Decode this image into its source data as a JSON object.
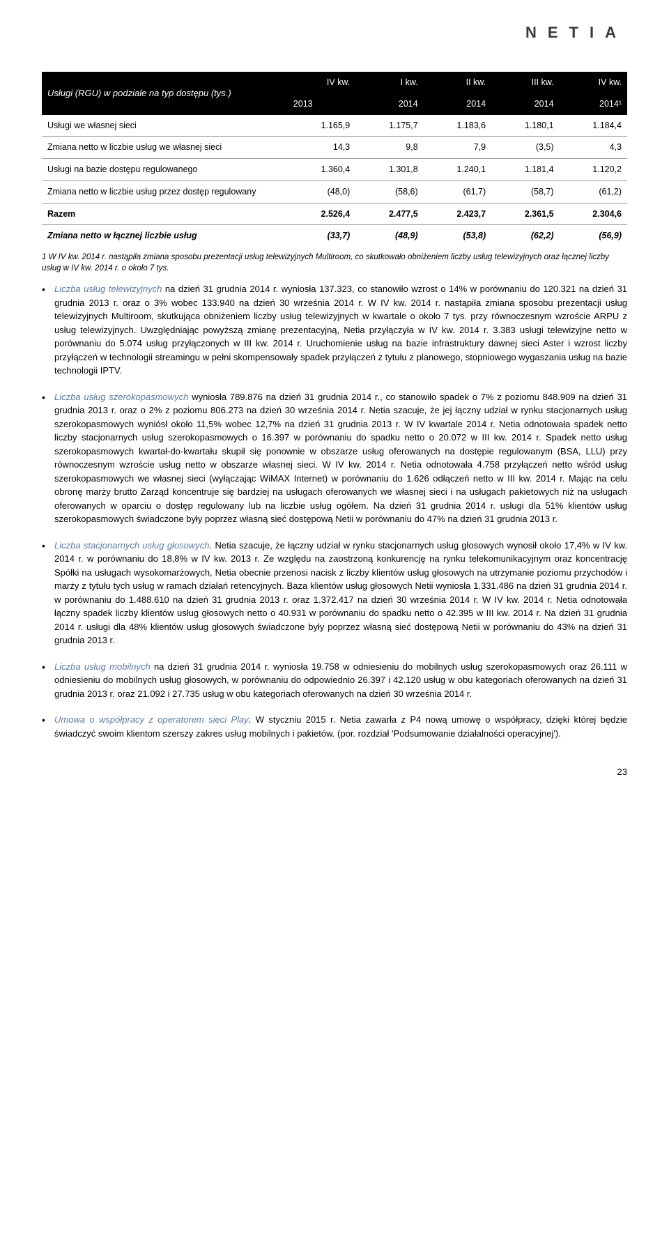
{
  "brand": "NETIA",
  "table": {
    "header_label": "Usługi (RGU) w podziale na typ dostępu (tys.)",
    "cols": [
      {
        "l1": "IV kw.",
        "l2": "2013"
      },
      {
        "l1": "I kw.",
        "l2": "2014"
      },
      {
        "l1": "II kw.",
        "l2": "2014"
      },
      {
        "l1": "III kw.",
        "l2": "2014"
      },
      {
        "l1": "IV kw.",
        "l2": "2014¹"
      }
    ],
    "rows": [
      {
        "label": "Usługi we własnej sieci",
        "v": [
          "1.165,9",
          "1.175,7",
          "1.183,6",
          "1.180,1",
          "1.184,4"
        ]
      },
      {
        "label": "Zmiana netto w liczbie usług we własnej sieci",
        "v": [
          "14,3",
          "9,8",
          "7,9",
          "(3,5)",
          "4,3"
        ]
      },
      {
        "label": "Usługi na bazie dostępu regulowanego",
        "v": [
          "1.360,4",
          "1.301,8",
          "1.240,1",
          "1.181,4",
          "1.120,2"
        ]
      },
      {
        "label": "Zmiana netto w liczbie usług przez dostęp regulowany",
        "v": [
          "(48,0)",
          "(58,6)",
          "(61,7)",
          "(58,7)",
          "(61,2)"
        ]
      }
    ],
    "razem": {
      "label": "Razem",
      "v": [
        "2.526,4",
        "2.477,5",
        "2.423,7",
        "2.361,5",
        "2.304,6"
      ]
    },
    "zmiana": {
      "label": "Zmiana netto w łącznej liczbie usług",
      "v": [
        "(33,7)",
        "(48,9)",
        "(53,8)",
        "(62,2)",
        "(56,9)"
      ]
    }
  },
  "footnote": "1 W IV kw. 2014 r. nastąpiła zmiana sposobu prezentacji usług telewizyjnych Multiroom, co skutkowało obniżeniem liczby usług telewizyjnych oraz łącznej liczby usług w IV kw. 2014 r. o około 7 tys.",
  "bullets": [
    {
      "lead": "Liczba usług telewizyjnych",
      "rest": " na dzień 31 grudnia 2014 r. wyniosła 137.323, co stanowiło wzrost o 14% w porównaniu do 120.321 na dzień 31 grudnia 2013 r. oraz o 3% wobec 133.940 na dzień 30 września 2014 r. W IV kw. 2014 r. nastąpiła zmiana sposobu prezentacji usług telewizyjnych Multiroom, skutkująca obniżeniem liczby usług telewizyjnych w kwartale o około 7 tys. przy równoczesnym wzroście ARPU z usług telewizyjnych. Uwzględniając powyższą zmianę prezentacyjną, Netia przyłączyła w IV kw. 2014 r. 3.383 usługi telewizyjne netto w porównaniu do 5.074 usług przyłączonych w III kw. 2014 r. Uruchomienie usług na bazie infrastruktury dawnej sieci Aster i wzrost liczby przyłączeń w technologii streamingu w pełni skompensowały spadek przyłączeń z tytułu z planowego, stopniowego wygaszania usług na bazie technologii IPTV."
    },
    {
      "lead": "Liczba usług szerokopasmowych",
      "rest": " wyniosła 789.876 na dzień 31 grudnia 2014 r., co stanowiło spadek o 7% z poziomu 848.909 na dzień 31 grudnia 2013 r. oraz o 2% z poziomu 806.273 na dzień 30 września 2014 r. Netia szacuje, że jej łączny udział w rynku stacjonarnych usług szerokopasmowych wyniósł około 11,5% wobec 12,7% na dzień 31 grudnia 2013 r. W IV kwartale 2014 r. Netia odnotowała spadek netto liczby stacjonarnych usług szerokopasmowych o 16.397 w porównaniu do spadku netto o 20.072 w III kw. 2014 r. Spadek netto usług szerokopasmowych kwartał-do-kwartału skupił się ponownie w obszarze usług oferowanych na dostępie regulowanym (BSA, LLU) przy równoczesnym wzroście usług netto w obszarze własnej sieci. W IV kw. 2014 r. Netia odnotowała 4.758 przyłączeń netto wśród usług szerokopasmowych we własnej sieci (wyłączając WiMAX Internet) w porównaniu do 1.626 odłączeń netto w III kw. 2014 r. Mając na celu obronę marży brutto Zarząd koncentruje się bardziej na usługach oferowanych we własnej sieci i na usługach pakietowych niż na usługach oferowanych w oparciu o dostęp regulowany lub na liczbie usług ogółem. Na dzień 31 grudnia 2014 r. usługi dla 51% klientów usług szerokopasmowych świadczone były poprzez własną sieć dostępową Netii w porównaniu do 47% na dzień 31 grudnia 2013 r."
    },
    {
      "lead": "Liczba stacjonarnych usług głosowych",
      "rest": ". Netia szacuje, że łączny udział w rynku stacjonarnych usług głosowych wynosił około 17,4% w IV kw. 2014 r. w porównaniu do 18,8% w IV kw. 2013 r. Ze względu na zaostrzoną konkurencję na rynku telekomunikacyjnym oraz koncentrację Spółki na usługach wysokomarżowych, Netia obecnie przenosi nacisk z liczby klientów usług głosowych na utrzymanie poziomu przychodów i marży z tytułu tych usług w ramach działań retencyjnych. Baza klientów usług głosowych Netii wyniosła 1.331.486 na dzień 31 grudnia 2014 r. w porównaniu do 1.488.610 na dzień 31 grudnia 2013 r. oraz 1.372.417 na dzień 30 września 2014 r. W IV kw. 2014 r. Netia odnotowała łączny spadek liczby klientów usług głosowych netto o 40.931 w porównaniu do spadku netto o 42.395 w III kw. 2014 r. Na dzień 31 grudnia 2014 r. usługi dla 48% klientów usług głosowych świadczone były poprzez własną sieć dostępową Netii w porównaniu do 43% na dzień 31 grudnia 2013 r."
    },
    {
      "lead": "Liczba usług mobilnych",
      "rest": " na dzień 31 grudnia 2014 r. wyniosła 19.758 w odniesieniu do mobilnych usług szerokopasmowych oraz 26.111 w odniesieniu do mobilnych usług głosowych, w porównaniu do odpowiednio 26.397 i 42.120 usług w obu kategoriach oferowanych na dzień 31 grudnia 2013 r. oraz 21.092 i 27.735 usług w obu kategoriach oferowanych na dzień 30 września 2014 r."
    },
    {
      "lead": "Umowa o współpracy z operatorem sieci Play",
      "rest": ". W styczniu 2015 r. Netia zawarła z P4 nową umowę o współpracy, dzięki której będzie świadczyć swoim klientom szerszy zakres usług mobilnych i pakietów. (por. rozdział 'Podsumowanie działalności operacyjnej')."
    }
  ],
  "pagenum": "23",
  "colors": {
    "header_bg": "#000000",
    "header_fg": "#ffffff",
    "text": "#000000",
    "lead": "#5b7ba5",
    "border": "#999999",
    "brand": "#3b3b3b"
  }
}
